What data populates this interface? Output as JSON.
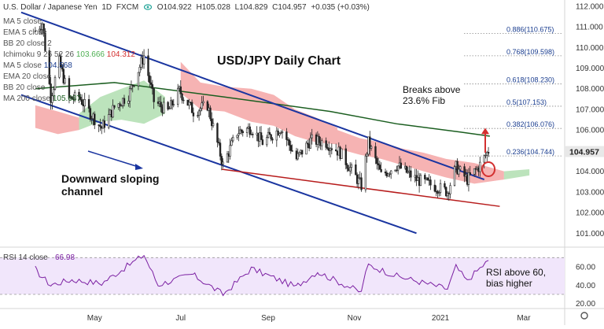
{
  "header": {
    "symbol_name": "U.S. Dollar / Japanese Yen",
    "interval": "1D",
    "exchange": "FXCM",
    "open": "O104.922",
    "high": "H105.028",
    "low": "L104.829",
    "close": "C104.957",
    "change": "+0.035 (+0.03%)"
  },
  "indicators": [
    {
      "label": "MA 5 close",
      "value": "",
      "color": "#6b6b6b"
    },
    {
      "label": "EMA 5 close",
      "value": "",
      "color": "#6b6b6b"
    },
    {
      "label": "BB 20 close 2",
      "value": "",
      "color": "#6b6b6b"
    },
    {
      "label": "Ichimoku 9 26 52 26",
      "value": "103.666",
      "value2": "104.312",
      "color": "#4caf50"
    },
    {
      "label": "MA 5 close",
      "value": "104.568",
      "color": "#1a3d8f"
    },
    {
      "label": "EMA 20 close",
      "value": "",
      "color": "#6b6b6b"
    },
    {
      "label": "BB 20 close",
      "value": "",
      "color": "#6b6b6b"
    },
    {
      "label": "MA 200 close",
      "value": "105.687",
      "color": "#1b5e20"
    }
  ],
  "annotations": {
    "title": "USD/JPY Daily Chart",
    "breaks": "Breaks above\n23.6% Fib",
    "channel": "Downward sloping\nchannel",
    "rsi_note": "RSI above 60,\nbias higher"
  },
  "price_badge": "104.957",
  "rsi_label": "RSI 14 close",
  "rsi_value": "66.98",
  "colors": {
    "channel": "#1a35a0",
    "support": "#b71c1c",
    "ma200": "#1b5e20",
    "cloud_bear": "#f08080",
    "cloud_bull": "#8fd18f",
    "candles": "#222222",
    "rsi": "#7b1fa2",
    "fib": "#1a3d8f",
    "arrow": "#d32f2f"
  },
  "chart_data": {
    "type": "candlestick",
    "price_axis": {
      "ticks": [
        101,
        102,
        103,
        104,
        105,
        106,
        107,
        108,
        109,
        110,
        111,
        112
      ],
      "range": [
        100.4,
        112.3
      ]
    },
    "time_axis": {
      "labels": [
        "May",
        "Jul",
        "Sep",
        "Nov",
        "2021",
        "Mar"
      ]
    },
    "close_series": [
      {
        "x": "2020-03-20",
        "y": 110.8
      },
      {
        "x": "2020-03-25",
        "y": 111.2
      },
      {
        "x": "2020-03-31",
        "y": 107.6
      },
      {
        "x": "2020-04-06",
        "y": 109.3
      },
      {
        "x": "2020-04-13",
        "y": 107.5
      },
      {
        "x": "2020-04-20",
        "y": 107.6
      },
      {
        "x": "2020-04-27",
        "y": 106.9
      },
      {
        "x": "2020-05-06",
        "y": 106.1
      },
      {
        "x": "2020-05-15",
        "y": 107.1
      },
      {
        "x": "2020-05-25",
        "y": 107.7
      },
      {
        "x": "2020-06-05",
        "y": 109.6
      },
      {
        "x": "2020-06-12",
        "y": 107.4
      },
      {
        "x": "2020-06-22",
        "y": 106.9
      },
      {
        "x": "2020-06-30",
        "y": 107.9
      },
      {
        "x": "2020-07-10",
        "y": 106.9
      },
      {
        "x": "2020-07-20",
        "y": 107.2
      },
      {
        "x": "2020-07-31",
        "y": 104.3
      },
      {
        "x": "2020-08-10",
        "y": 105.9
      },
      {
        "x": "2020-08-20",
        "y": 106.1
      },
      {
        "x": "2020-08-28",
        "y": 105.4
      },
      {
        "x": "2020-09-10",
        "y": 106.1
      },
      {
        "x": "2020-09-21",
        "y": 104.6
      },
      {
        "x": "2020-10-01",
        "y": 105.5
      },
      {
        "x": "2020-10-12",
        "y": 105.4
      },
      {
        "x": "2020-10-22",
        "y": 104.9
      },
      {
        "x": "2020-11-06",
        "y": 103.3
      },
      {
        "x": "2020-11-11",
        "y": 105.4
      },
      {
        "x": "2020-11-20",
        "y": 103.8
      },
      {
        "x": "2020-12-01",
        "y": 104.3
      },
      {
        "x": "2020-12-15",
        "y": 103.6
      },
      {
        "x": "2020-12-31",
        "y": 103.2
      },
      {
        "x": "2021-01-06",
        "y": 103.0
      },
      {
        "x": "2021-01-12",
        "y": 104.2
      },
      {
        "x": "2021-01-20",
        "y": 103.6
      },
      {
        "x": "2021-01-28",
        "y": 104.2
      },
      {
        "x": "2021-02-04",
        "y": 105.0
      }
    ],
    "ma200": [
      {
        "x": "2020-03-20",
        "y": 108.0
      },
      {
        "x": "2020-05-15",
        "y": 108.3
      },
      {
        "x": "2020-08-01",
        "y": 107.6
      },
      {
        "x": "2020-10-15",
        "y": 106.9
      },
      {
        "x": "2020-12-01",
        "y": 106.3
      },
      {
        "x": "2021-01-15",
        "y": 105.9
      },
      {
        "x": "2021-02-05",
        "y": 105.7
      }
    ],
    "channel_upper": [
      {
        "x": "2020-03-10",
        "y": 111.7
      },
      {
        "x": "2021-02-01",
        "y": 103.6
      }
    ],
    "channel_lower": [
      {
        "x": "2020-03-10",
        "y": 107.7
      },
      {
        "x": "2020-12-15",
        "y": 101.0
      }
    ],
    "support_line": [
      {
        "x": "2020-07-30",
        "y": 104.1
      },
      {
        "x": "2021-02-12",
        "y": 102.3
      }
    ],
    "fib_levels": [
      {
        "label": "0.886(110.675)",
        "value": 110.675
      },
      {
        "label": "0.768(109.598)",
        "value": 109.598
      },
      {
        "label": "0.618(108.230)",
        "value": 108.23
      },
      {
        "label": "0.5(107.153)",
        "value": 107.153
      },
      {
        "label": "0.382(106.076)",
        "value": 106.076
      },
      {
        "label": "0.236(104.744)",
        "value": 104.744
      }
    ],
    "rsi": {
      "ticks": [
        20.0,
        40.0,
        60.0
      ],
      "range": [
        18,
        78
      ],
      "overbought": 70,
      "oversold": 30,
      "series": [
        {
          "x": "2020-03-20",
          "y": 58
        },
        {
          "x": "2020-03-31",
          "y": 40
        },
        {
          "x": "2020-04-15",
          "y": 46
        },
        {
          "x": "2020-05-06",
          "y": 42
        },
        {
          "x": "2020-06-05",
          "y": 73
        },
        {
          "x": "2020-06-15",
          "y": 40
        },
        {
          "x": "2020-07-10",
          "y": 52
        },
        {
          "x": "2020-07-31",
          "y": 30
        },
        {
          "x": "2020-08-20",
          "y": 58
        },
        {
          "x": "2020-09-21",
          "y": 38
        },
        {
          "x": "2020-10-06",
          "y": 55
        },
        {
          "x": "2020-11-06",
          "y": 32
        },
        {
          "x": "2020-11-11",
          "y": 62
        },
        {
          "x": "2020-12-01",
          "y": 50
        },
        {
          "x": "2021-01-06",
          "y": 36
        },
        {
          "x": "2021-01-12",
          "y": 60
        },
        {
          "x": "2021-01-20",
          "y": 44
        },
        {
          "x": "2021-02-04",
          "y": 66.98
        }
      ]
    }
  }
}
